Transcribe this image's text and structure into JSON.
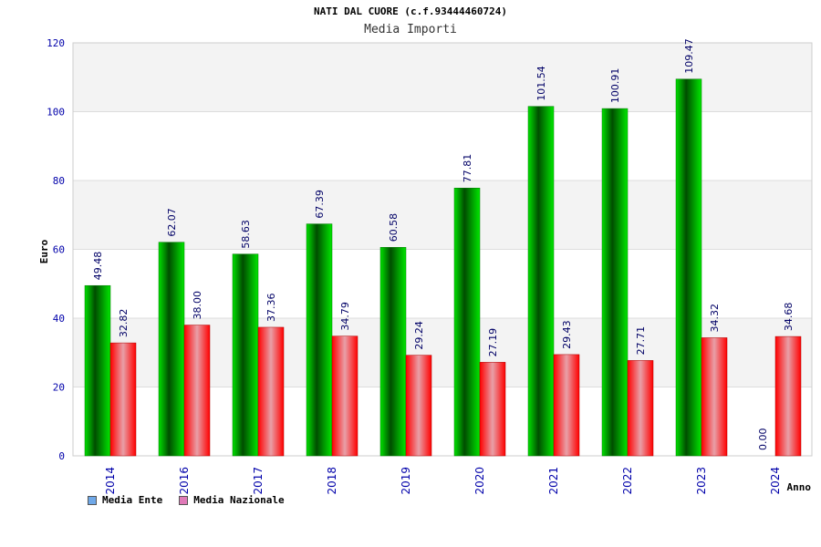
{
  "chart_data": {
    "type": "bar",
    "title": "NATI DAL CUORE (c.f.93444460724)",
    "subtitle": "Media Importi",
    "xlabel": "Anno",
    "ylabel": "Euro",
    "ylim": [
      0,
      120
    ],
    "yticks": [
      0,
      20,
      40,
      60,
      80,
      100,
      120
    ],
    "categories": [
      "2014",
      "2016",
      "2017",
      "2018",
      "2019",
      "2020",
      "2021",
      "2022",
      "2023",
      "2024"
    ],
    "series": [
      {
        "name": "Media Ente",
        "color": "#00cc00",
        "legend_color": "#6fa8e8",
        "values": [
          49.48,
          62.07,
          58.63,
          67.39,
          60.58,
          77.81,
          101.54,
          100.91,
          109.47,
          0.0
        ],
        "labels": [
          "49.48",
          "62.07",
          "58.63",
          "67.39",
          "60.58",
          "77.81",
          "101.54",
          "100.91",
          "109.47",
          "0.00"
        ]
      },
      {
        "name": "Media Nazionale",
        "color": "#ee1111",
        "legend_color": "#e07ab8",
        "values": [
          32.82,
          38.0,
          37.36,
          34.79,
          29.24,
          27.19,
          29.43,
          27.71,
          34.32,
          34.68
        ],
        "labels": [
          "32.82",
          "38.00",
          "37.36",
          "34.79",
          "29.24",
          "27.19",
          "29.43",
          "27.71",
          "34.32",
          "34.68"
        ]
      }
    ],
    "grid": true,
    "legend_position": "bottom-left"
  }
}
